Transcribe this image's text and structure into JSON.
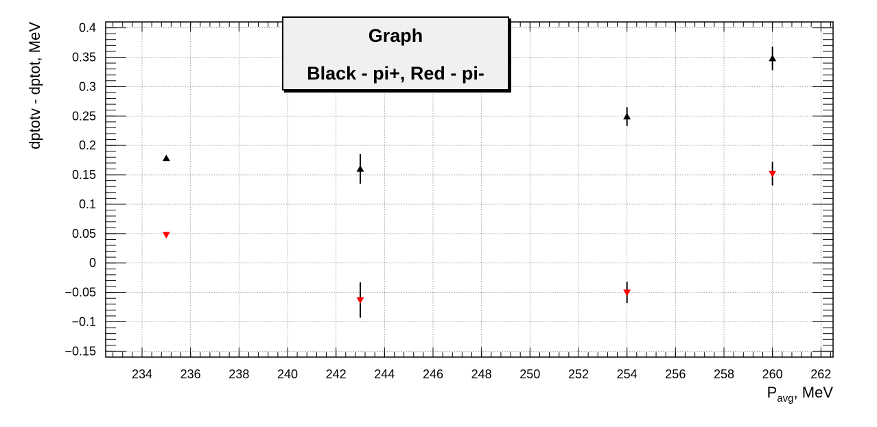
{
  "chart_data": {
    "type": "scatter",
    "title": "Graph",
    "subtitle": "Black - pi+, Red - pi-",
    "xlabel_main": "P",
    "xlabel_sub": "avg",
    "xlabel_suffix": ", MeV",
    "ylabel": "dptotv - dptot, MeV",
    "xlim": [
      232.5,
      262.5
    ],
    "ylim": [
      -0.16,
      0.41
    ],
    "x_ticks": [
      234,
      236,
      238,
      240,
      242,
      244,
      246,
      248,
      250,
      252,
      254,
      256,
      258,
      260,
      262
    ],
    "y_ticks": [
      -0.15,
      -0.1,
      -0.05,
      0,
      0.05,
      0.1,
      0.15,
      0.2,
      0.25,
      0.3,
      0.35,
      0.4
    ],
    "y_tick_labels": [
      "−0.15",
      "−0.1",
      "−0.05",
      "0",
      "0.05",
      "0.1",
      "0.15",
      "0.2",
      "0.25",
      "0.3",
      "0.35",
      "0.4"
    ],
    "grid": true,
    "series": [
      {
        "color": "#000000",
        "marker": "triangle-up",
        "points": [
          {
            "x": 235,
            "y": 0.178,
            "err": 0.004
          },
          {
            "x": 243,
            "y": 0.16,
            "err": 0.025
          },
          {
            "x": 254,
            "y": 0.249,
            "err": 0.016
          },
          {
            "x": 260,
            "y": 0.348,
            "err": 0.02
          }
        ]
      },
      {
        "color": "#ff0000",
        "marker": "triangle-down",
        "points": [
          {
            "x": 235,
            "y": 0.048,
            "err": 0.004
          },
          {
            "x": 243,
            "y": -0.063,
            "err": 0.03
          },
          {
            "x": 254,
            "y": -0.05,
            "err": 0.018
          },
          {
            "x": 260,
            "y": 0.152,
            "err": 0.02
          }
        ]
      }
    ]
  }
}
